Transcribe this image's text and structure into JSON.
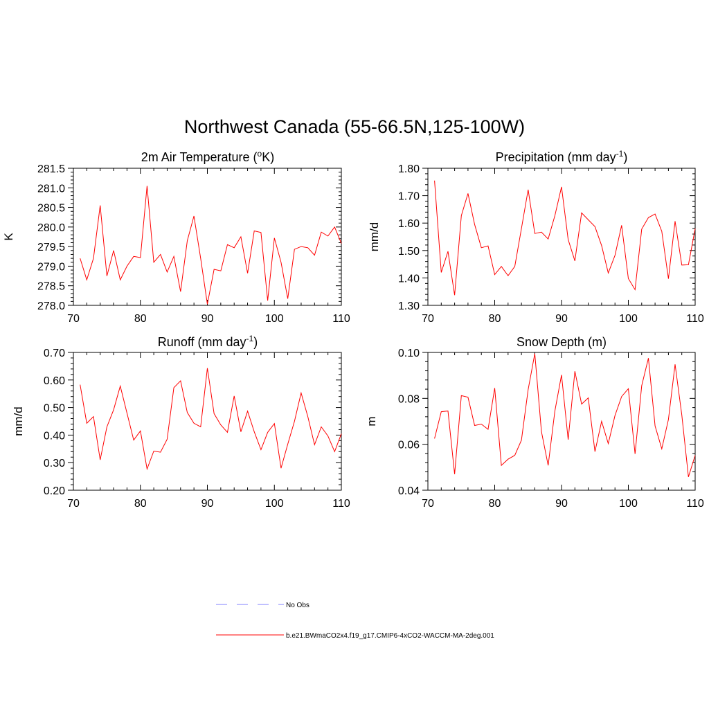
{
  "title": "Northwest Canada (55-66.5N,125-100W)",
  "colors": {
    "model": "#ff0000",
    "obs": "#8080ff"
  },
  "legend": {
    "obs_label": "No Obs",
    "model_label": "b.e21.BWmaCO2x4.f19_g17.CMIP6-4xCO2-WACCM-MA-2deg.001"
  },
  "chart_data": [
    {
      "type": "line",
      "title": "2m Air Temperature (",
      "title_sup": "o",
      "title_end": "K)",
      "xlabel": "",
      "ylabel": "K",
      "xlim": [
        70,
        110
      ],
      "ylim": [
        278.0,
        281.5
      ],
      "xticks": [
        "70",
        "80",
        "90",
        "100",
        "110"
      ],
      "yticks": [
        "278.0",
        "278.5",
        "279.0",
        "279.5",
        "280.0",
        "280.5",
        "281.0",
        "281.5"
      ],
      "series": [
        {
          "name": "b.e21.BWmaCO2x4.f19_g17.CMIP6-4xCO2-WACCM-MA-2deg.001",
          "x": [
            71,
            72,
            73,
            74,
            75,
            76,
            77,
            78,
            79,
            80,
            81,
            82,
            83,
            84,
            85,
            86,
            87,
            88,
            89,
            90,
            91,
            92,
            93,
            94,
            95,
            96,
            97,
            98,
            99,
            100,
            101,
            102,
            103,
            104,
            105,
            106,
            107,
            108,
            109,
            110
          ],
          "values": [
            279.2,
            278.65,
            279.2,
            280.55,
            278.75,
            279.4,
            278.65,
            279.0,
            279.25,
            279.22,
            281.05,
            279.1,
            279.3,
            278.85,
            279.25,
            278.35,
            279.65,
            280.28,
            279.2,
            278.03,
            278.92,
            278.88,
            279.55,
            279.47,
            279.75,
            278.82,
            279.9,
            279.86,
            278.12,
            279.72,
            279.1,
            278.17,
            279.43,
            279.5,
            279.47,
            279.28,
            279.87,
            279.77,
            280.0,
            279.58
          ]
        }
      ]
    },
    {
      "type": "line",
      "title": "Precipitation (mm day",
      "title_sup": "-1",
      "title_end": ")",
      "xlabel": "",
      "ylabel": "mm/d",
      "xlim": [
        70,
        110
      ],
      "ylim": [
        1.3,
        1.8
      ],
      "xticks": [
        "70",
        "80",
        "90",
        "100",
        "110"
      ],
      "yticks": [
        "1.30",
        "1.40",
        "1.50",
        "1.60",
        "1.70",
        "1.80"
      ],
      "series": [
        {
          "name": "b.e21.BWmaCO2x4.f19_g17.CMIP6-4xCO2-WACCM-MA-2deg.001",
          "x": [
            71,
            72,
            73,
            74,
            75,
            76,
            77,
            78,
            79,
            80,
            81,
            82,
            83,
            84,
            85,
            86,
            87,
            88,
            89,
            90,
            91,
            92,
            93,
            94,
            95,
            96,
            97,
            98,
            99,
            100,
            101,
            102,
            103,
            104,
            105,
            106,
            107,
            108,
            109,
            110
          ],
          "values": [
            1.755,
            1.42,
            1.497,
            1.337,
            1.627,
            1.708,
            1.595,
            1.51,
            1.517,
            1.412,
            1.442,
            1.408,
            1.442,
            1.58,
            1.722,
            1.562,
            1.567,
            1.542,
            1.627,
            1.732,
            1.54,
            1.462,
            1.637,
            1.612,
            1.587,
            1.518,
            1.418,
            1.482,
            1.592,
            1.398,
            1.357,
            1.578,
            1.62,
            1.633,
            1.57,
            1.397,
            1.607,
            1.447,
            1.448,
            1.58
          ]
        }
      ]
    },
    {
      "type": "line",
      "title": "Runoff (mm day",
      "title_sup": "-1",
      "title_end": ")",
      "xlabel": "",
      "ylabel": "mm/d",
      "xlim": [
        70,
        110
      ],
      "ylim": [
        0.2,
        0.7
      ],
      "xticks": [
        "70",
        "80",
        "90",
        "100",
        "110"
      ],
      "yticks": [
        "0.20",
        "0.30",
        "0.40",
        "0.50",
        "0.60",
        "0.70"
      ],
      "series": [
        {
          "name": "b.e21.BWmaCO2x4.f19_g17.CMIP6-4xCO2-WACCM-MA-2deg.001",
          "x": [
            71,
            72,
            73,
            74,
            75,
            76,
            77,
            78,
            79,
            80,
            81,
            82,
            83,
            84,
            85,
            86,
            87,
            88,
            89,
            90,
            91,
            92,
            93,
            94,
            95,
            96,
            97,
            98,
            99,
            100,
            101,
            102,
            103,
            104,
            105,
            106,
            107,
            108,
            109,
            110
          ],
          "values": [
            0.583,
            0.443,
            0.467,
            0.31,
            0.43,
            0.492,
            0.578,
            0.48,
            0.382,
            0.415,
            0.277,
            0.342,
            0.338,
            0.385,
            0.572,
            0.597,
            0.482,
            0.443,
            0.43,
            0.643,
            0.478,
            0.437,
            0.41,
            0.542,
            0.412,
            0.487,
            0.412,
            0.347,
            0.41,
            0.442,
            0.28,
            0.367,
            0.45,
            0.553,
            0.467,
            0.365,
            0.43,
            0.397,
            0.34,
            0.405
          ]
        }
      ]
    },
    {
      "type": "line",
      "title": "Snow Depth (m)",
      "title_sup": "",
      "title_end": "",
      "xlabel": "",
      "ylabel": "m",
      "xlim": [
        70,
        110
      ],
      "ylim": [
        0.04,
        0.1
      ],
      "xticks": [
        "70",
        "80",
        "90",
        "100",
        "110"
      ],
      "yticks": [
        "0.04",
        "0.06",
        "0.08",
        "0.10"
      ],
      "series": [
        {
          "name": "b.e21.BWmaCO2x4.f19_g17.CMIP6-4xCO2-WACCM-MA-2deg.001",
          "x": [
            71,
            72,
            73,
            74,
            75,
            76,
            77,
            78,
            79,
            80,
            81,
            82,
            83,
            84,
            85,
            86,
            87,
            88,
            89,
            90,
            91,
            92,
            93,
            94,
            95,
            96,
            97,
            98,
            99,
            100,
            101,
            102,
            103,
            104,
            105,
            106,
            107,
            108,
            109,
            110
          ],
          "values": [
            0.0625,
            0.0742,
            0.0745,
            0.047,
            0.0812,
            0.0805,
            0.0682,
            0.0688,
            0.0665,
            0.0845,
            0.0508,
            0.0535,
            0.0552,
            0.0618,
            0.0838,
            0.0995,
            0.0655,
            0.0508,
            0.0745,
            0.0902,
            0.062,
            0.0918,
            0.0775,
            0.0802,
            0.0568,
            0.07,
            0.0603,
            0.0725,
            0.0808,
            0.0842,
            0.0558,
            0.0855,
            0.0975,
            0.068,
            0.058,
            0.0708,
            0.0948,
            0.0728,
            0.0458,
            0.0552
          ]
        }
      ]
    }
  ]
}
